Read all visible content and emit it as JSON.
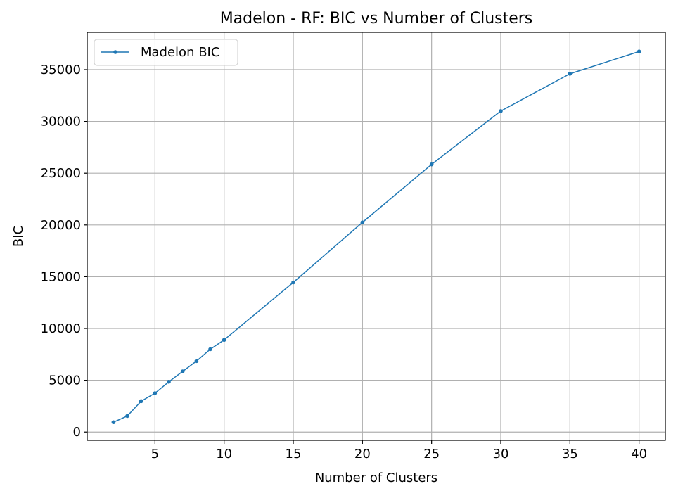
{
  "chart_data": {
    "type": "line",
    "title": "Madelon - RF: BIC vs Number of Clusters",
    "xlabel": "Number of Clusters",
    "ylabel": "BIC",
    "xlim": [
      0.1,
      41.9
    ],
    "ylim": [
      -800,
      38600
    ],
    "xticks": [
      5,
      10,
      15,
      20,
      25,
      30,
      35,
      40
    ],
    "yticks": [
      0,
      5000,
      10000,
      15000,
      20000,
      25000,
      30000,
      35000
    ],
    "grid": true,
    "legend_position": "top-left",
    "series": [
      {
        "name": "Madelon BIC",
        "color": "#1f77b4",
        "marker": "circle",
        "x": [
          2,
          3,
          4,
          5,
          6,
          7,
          8,
          9,
          10,
          15,
          20,
          25,
          30,
          35,
          40
        ],
        "y": [
          950,
          1550,
          2980,
          3750,
          4850,
          5850,
          6850,
          8000,
          8900,
          14450,
          20250,
          25850,
          31000,
          34600,
          36750
        ]
      }
    ]
  }
}
